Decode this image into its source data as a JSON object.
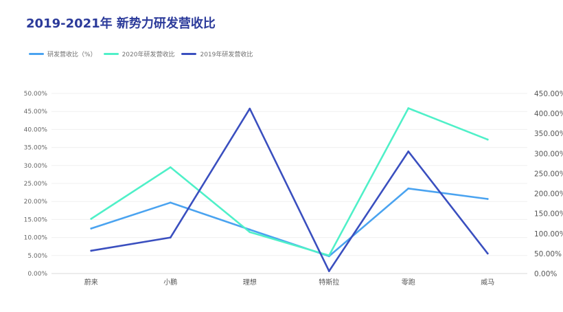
{
  "title": "2019-2021年  新势力研发营收比",
  "chart_data": {
    "type": "line",
    "title": "2019-2021年  新势力研发营收比",
    "categories": [
      "蔚来",
      "小鹏",
      "理想",
      "特斯拉",
      "零跑",
      "威马"
    ],
    "left_axis": {
      "ticks": [
        "0.00%",
        "5.00%",
        "10.00%",
        "15.00%",
        "20.00%",
        "25.00%",
        "30.00%",
        "35.00%",
        "40.00%",
        "45.00%",
        "50.00%"
      ],
      "range": [
        0,
        50
      ]
    },
    "right_axis": {
      "ticks": [
        "0.00%",
        "50.00%",
        "100.00%",
        "150.00%",
        "200.00%",
        "250.00%",
        "300.00%",
        "350.00%",
        "400.00%",
        "450.00%"
      ],
      "range": [
        0,
        450
      ]
    },
    "grid": true,
    "legend_position": "top-left",
    "series": [
      {
        "name": "研发营收比（%）",
        "axis": "left",
        "color": "#4aa3f0",
        "values": [
          12.5,
          19.7,
          12.2,
          4.8,
          23.6,
          20.7
        ]
      },
      {
        "name": "2020年研发营收比",
        "axis": "left",
        "color": "#4ff0c8",
        "values": [
          15.2,
          29.5,
          11.5,
          5.0,
          45.9,
          37.2
        ]
      },
      {
        "name": "2019年研发营收比",
        "axis": "right",
        "color": "#3a4fbf",
        "values": [
          57,
          90,
          412,
          6,
          305,
          50
        ]
      }
    ]
  }
}
